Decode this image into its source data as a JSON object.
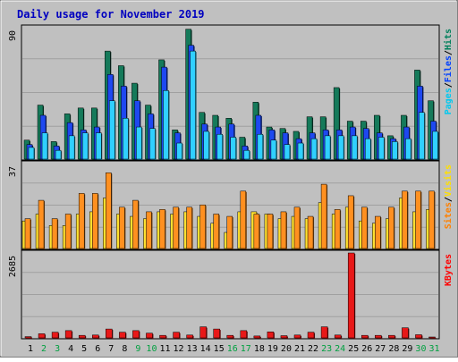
{
  "chart_data": {
    "type": "bar",
    "title": "Daily usage for November 2019",
    "categories": [
      "1",
      "2",
      "3",
      "4",
      "5",
      "6",
      "7",
      "8",
      "9",
      "10",
      "11",
      "12",
      "13",
      "14",
      "15",
      "16",
      "17",
      "18",
      "19",
      "20",
      "21",
      "22",
      "23",
      "24",
      "25",
      "26",
      "27",
      "28",
      "29",
      "30",
      "31"
    ],
    "weekend_days": [
      "2",
      "3",
      "9",
      "10",
      "16",
      "17",
      "23",
      "24",
      "30",
      "31"
    ],
    "panels": [
      {
        "name": "hits-files-pages",
        "max_label": "90",
        "ylim": [
          0,
          90
        ],
        "legend": [
          {
            "text": "Pages",
            "color": "#00c8f0"
          },
          {
            "text": "Files",
            "color": "#0040ff"
          },
          {
            "text": "Hits",
            "color": "#00805c"
          }
        ],
        "series": [
          {
            "name": "Hits",
            "color": "#157a5a",
            "values": [
              13,
              37,
              12,
              31,
              35,
              35,
              74,
              64,
              52,
              37,
              68,
              20,
              89,
              32,
              30,
              28,
              15,
              39,
              22,
              21,
              19,
              29,
              29,
              49,
              26,
              26,
              30,
              16,
              30,
              61,
              40
            ]
          },
          {
            "name": "Files",
            "color": "#1e48f0",
            "values": [
              10,
              30,
              9,
              25,
              20,
              22,
              58,
              50,
              40,
              31,
              63,
              18,
              78,
              24,
              22,
              24,
              9,
              30,
              20,
              18,
              14,
              18,
              20,
              20,
              22,
              21,
              18,
              14,
              22,
              50,
              26
            ]
          },
          {
            "name": "Pages",
            "color": "#30d0ff",
            "values": [
              8,
              18,
              6,
              16,
              18,
              18,
              40,
              28,
              22,
              21,
              47,
              11,
              74,
              19,
              17,
              15,
              6,
              17,
              13,
              10,
              11,
              14,
              16,
              16,
              16,
              14,
              15,
              12,
              14,
              32,
              19
            ]
          }
        ]
      },
      {
        "name": "visits-sites",
        "max_label": "37",
        "ylim": [
          0,
          37
        ],
        "legend": [
          {
            "text": "Sites",
            "color": "#ff8000"
          },
          {
            "text": "Visits",
            "color": "#ffe000"
          }
        ],
        "series": [
          {
            "name": "Visits",
            "color": "#ffe030",
            "values": [
              12,
              15,
              10,
              10,
              15,
              16,
              22,
              15,
              14,
              13,
              16,
              15,
              16,
              14,
              11,
              7,
              16,
              16,
              15,
              13,
              14,
              13,
              20,
              15,
              18,
              12,
              11,
              13,
              22,
              16,
              17
            ]
          },
          {
            "name": "Sites",
            "color": "#ff9020",
            "values": [
              13,
              21,
              13,
              15,
              24,
              24,
              33,
              18,
              21,
              16,
              17,
              18,
              18,
              19,
              15,
              14,
              25,
              15,
              15,
              16,
              18,
              14,
              28,
              17,
              23,
              18,
              14,
              18,
              25,
              25,
              25
            ]
          }
        ]
      },
      {
        "name": "kbytes",
        "max_label": "2685",
        "ylim": [
          0,
          2685
        ],
        "legend": [
          {
            "text": "KBytes",
            "color": "#ff0000"
          }
        ],
        "series": [
          {
            "name": "KBytes",
            "color": "#e81818",
            "values": [
              40,
              130,
              180,
              230,
              80,
              90,
              280,
              180,
              230,
              150,
              80,
              180,
              90,
              350,
              280,
              80,
              230,
              60,
              190,
              70,
              90,
              180,
              350,
              90,
              2685,
              80,
              80,
              80,
              320,
              100,
              10
            ]
          }
        ]
      }
    ]
  }
}
